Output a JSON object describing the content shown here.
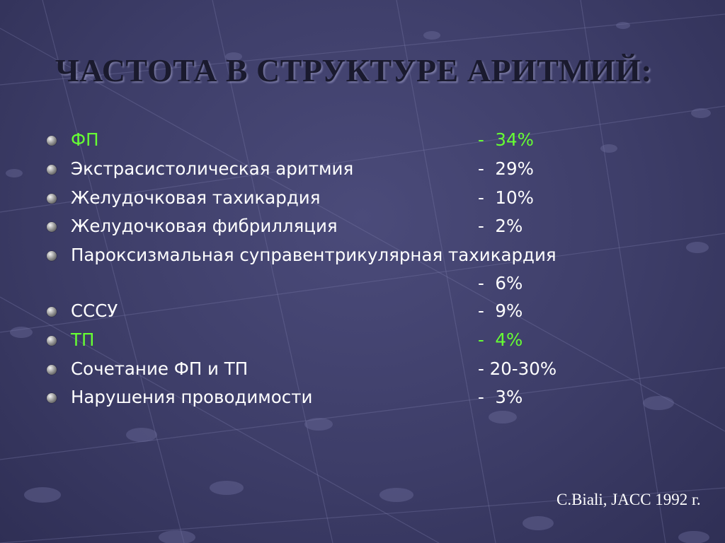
{
  "slide": {
    "title": "ЧАСТОТА В СТРУКТУРЕ АРИТМИЙ:",
    "source": "C.Biali, JACC 1992 г.",
    "highlight_color": "#66ff33",
    "text_color": "#ffffff",
    "items": [
      {
        "label": "ФП",
        "value": "-  34%",
        "highlight": true
      },
      {
        "label": "Экстрасистолическая аритмия",
        "value": "-  29%",
        "highlight": false
      },
      {
        "label": "Желудочковая тахикардия",
        "value": "-  10%",
        "highlight": false
      },
      {
        "label": "Желудочковая фибрилляция",
        "value": "-  2%",
        "highlight": false
      },
      {
        "label": "Пароксизмальная суправентрикулярная тахикардия",
        "value": "",
        "highlight": false
      },
      {
        "label": "",
        "value": "-  6%",
        "highlight": false,
        "continuation": true
      },
      {
        "label": "СССУ",
        "value": "-  9%",
        "highlight": false
      },
      {
        "label": "ТП",
        "value": "-  4%",
        "highlight": true
      },
      {
        "label": "Сочетание ФП и ТП",
        "value": "- 20-30%",
        "highlight": false
      },
      {
        "label": "Нарушения проводимости",
        "value": "-  3%",
        "highlight": false
      }
    ]
  }
}
